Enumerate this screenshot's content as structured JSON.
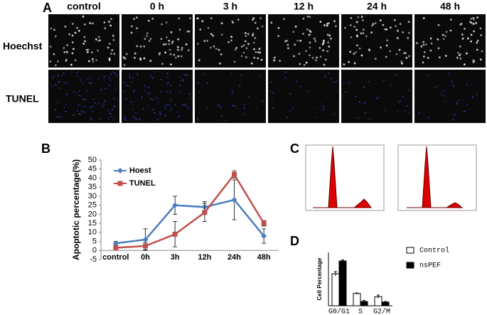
{
  "figure": {
    "panels": [
      "A",
      "B",
      "C",
      "D"
    ],
    "columns": [
      "control",
      "0 h",
      "3 h",
      "12 h",
      "24 h",
      "48 h"
    ],
    "rows": [
      "Hoechst",
      "TUNEL"
    ]
  },
  "chart_data": [
    {
      "type": "line",
      "ylabel": "Apoptotic percentage(%)",
      "categories": [
        "control",
        "0h",
        "3h",
        "12h",
        "24h",
        "48h"
      ],
      "ylim": [
        -5,
        50
      ],
      "yticks": [
        -5,
        0,
        5,
        10,
        15,
        20,
        25,
        30,
        35,
        40,
        45,
        50
      ],
      "series": [
        {
          "name": "Hoest",
          "color": "#4a7ebf",
          "marker": "diamond",
          "values": [
            4,
            6,
            25,
            24,
            28,
            8
          ],
          "errors": [
            1,
            6,
            5,
            3,
            11,
            4
          ]
        },
        {
          "name": "TUNEL",
          "color": "#c0504d",
          "marker": "square",
          "values": [
            1.5,
            2.5,
            9,
            21,
            42,
            15
          ],
          "errors": [
            1,
            2,
            7,
            5,
            2,
            1.5
          ]
        }
      ]
    },
    {
      "type": "bar",
      "ylabel": "Cell Percentage",
      "categories": [
        "G0/G1",
        "S",
        "G2/M"
      ],
      "ylim": [
        0,
        100
      ],
      "series": [
        {
          "name": "Control",
          "color": "#ffffff",
          "values": [
            60,
            23,
            17
          ],
          "errors": [
            4,
            1,
            3
          ]
        },
        {
          "name": "nsPEF",
          "color": "#000000",
          "values": [
            84,
            8,
            7
          ],
          "errors": [
            2,
            2,
            1
          ]
        }
      ]
    }
  ]
}
